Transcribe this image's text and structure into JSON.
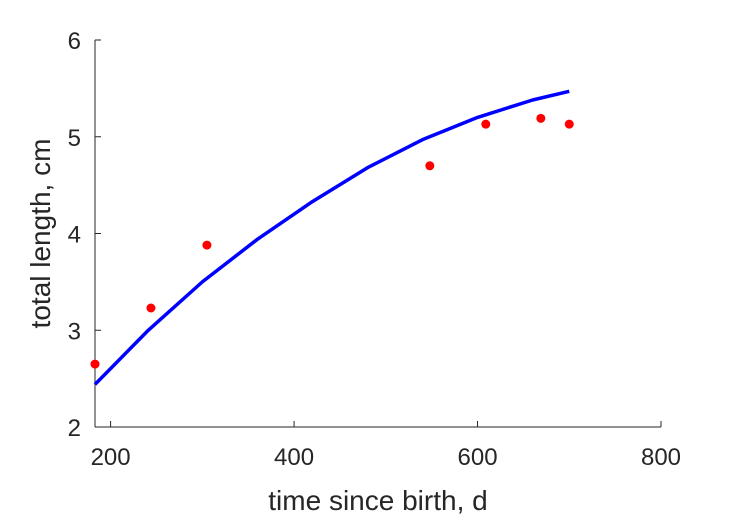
{
  "chart_data": {
    "type": "scatter",
    "title": "",
    "xlabel": "time since birth, d",
    "ylabel": "total length, cm",
    "xlim": [
      183,
      800
    ],
    "ylim": [
      2,
      6
    ],
    "xticks": [
      200,
      400,
      600,
      800
    ],
    "yticks": [
      2,
      3,
      4,
      5,
      6
    ],
    "grid": false,
    "series": [
      {
        "type": "scatter",
        "color": "#ff0000",
        "x": [
          183,
          244,
          305,
          548,
          609,
          669,
          700
        ],
        "y": [
          2.65,
          3.23,
          3.88,
          4.7,
          5.13,
          5.19,
          5.13
        ]
      },
      {
        "type": "line",
        "color": "#0000ff",
        "x": [
          183,
          240,
          300,
          360,
          420,
          480,
          540,
          600,
          660,
          700
        ],
        "y": [
          2.44,
          2.99,
          3.5,
          3.94,
          4.33,
          4.68,
          4.97,
          5.2,
          5.38,
          5.47
        ]
      }
    ]
  }
}
